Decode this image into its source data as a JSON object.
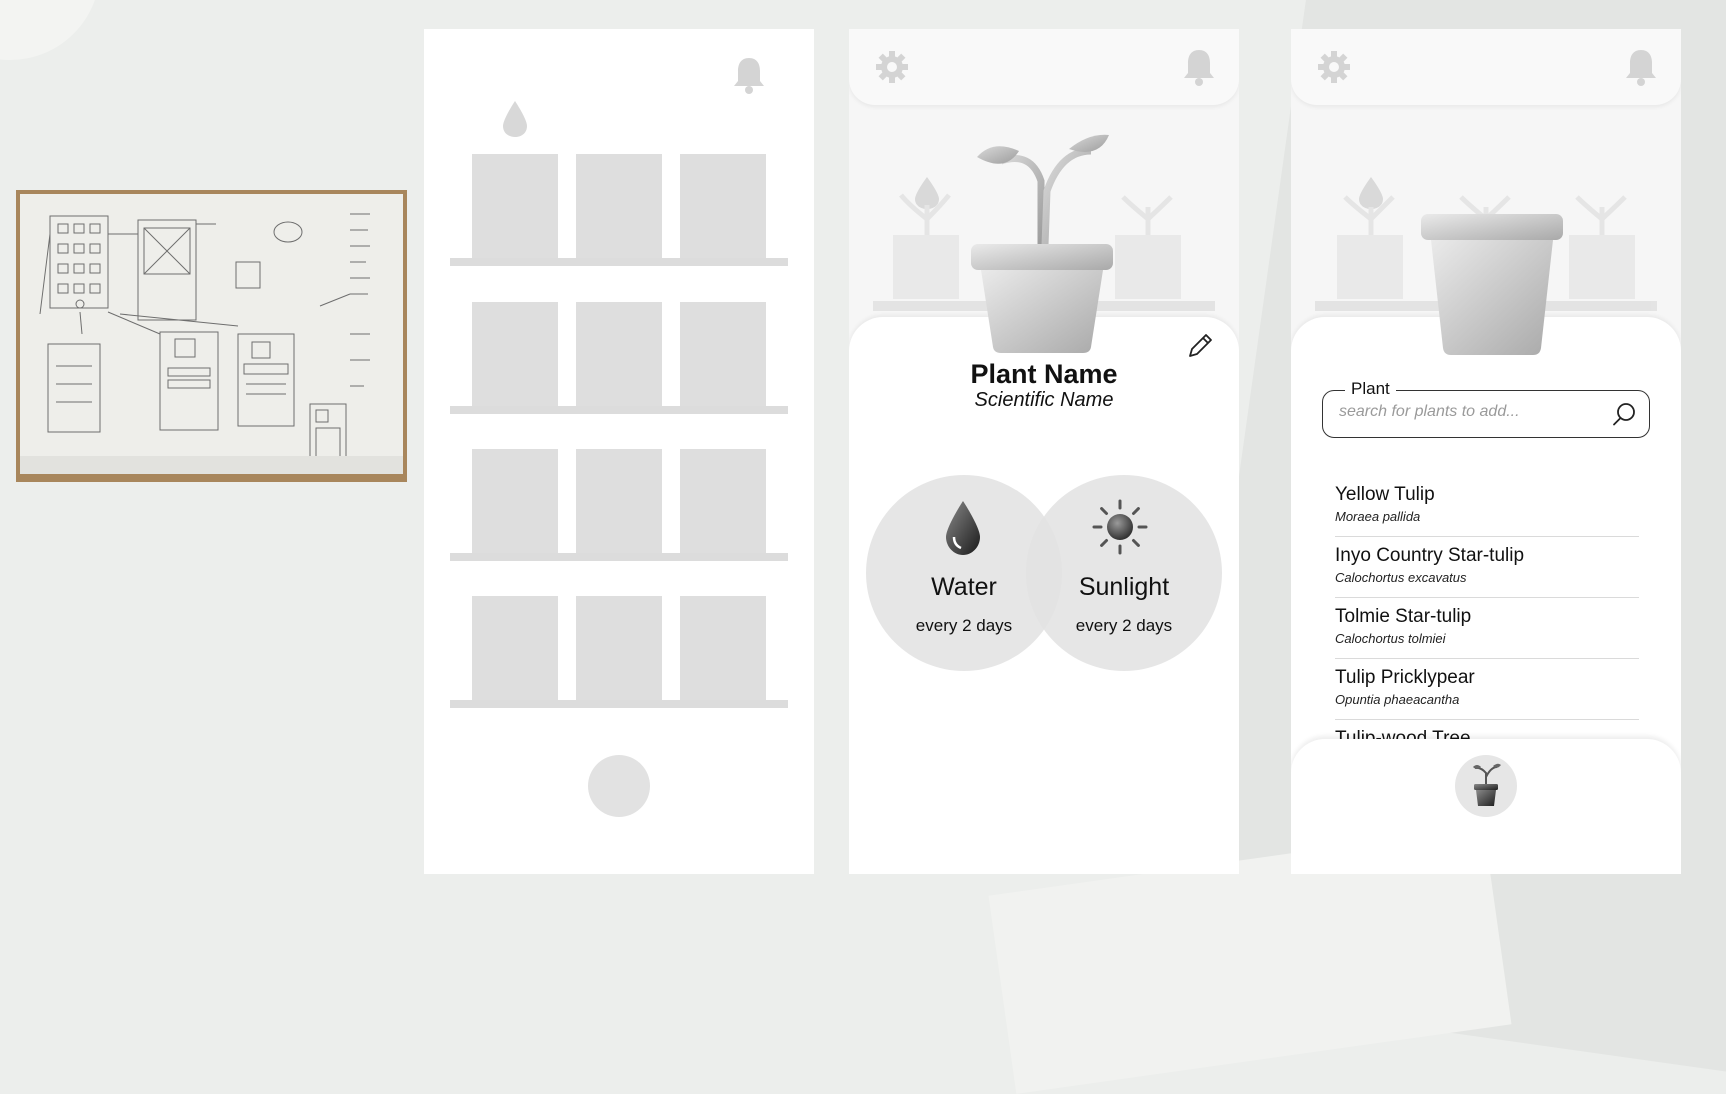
{
  "colors": {
    "placeholder_gray": "#dedede",
    "sheet_white": "#ffffff",
    "text_dark": "#111111",
    "background": "#eceeec"
  },
  "icons": [
    "bell-icon",
    "gear-icon",
    "water-drop-icon",
    "pencil-icon",
    "sun-icon",
    "search-icon",
    "plant-pot-icon"
  ],
  "detail": {
    "plant_name": "Plant Name",
    "scientific_name": "Scientific Name",
    "water": {
      "title": "Water",
      "frequency": "every 2 days"
    },
    "sunlight": {
      "title": "Sunlight",
      "frequency": "every 2 days"
    }
  },
  "search": {
    "label": "Plant",
    "placeholder": "search for plants to add...",
    "value": ""
  },
  "results": [
    {
      "common": "Yellow Tulip",
      "scientific": "Moraea pallida"
    },
    {
      "common": "Inyo Country Star-tulip",
      "scientific": "Calochortus excavatus"
    },
    {
      "common": "Tolmie Star-tulip",
      "scientific": "Calochortus tolmiei"
    },
    {
      "common": "Tulip Pricklypear",
      "scientific": "Opuntia phaeacantha"
    },
    {
      "common": "Tulip-wood Tree",
      "scientific": ""
    }
  ]
}
